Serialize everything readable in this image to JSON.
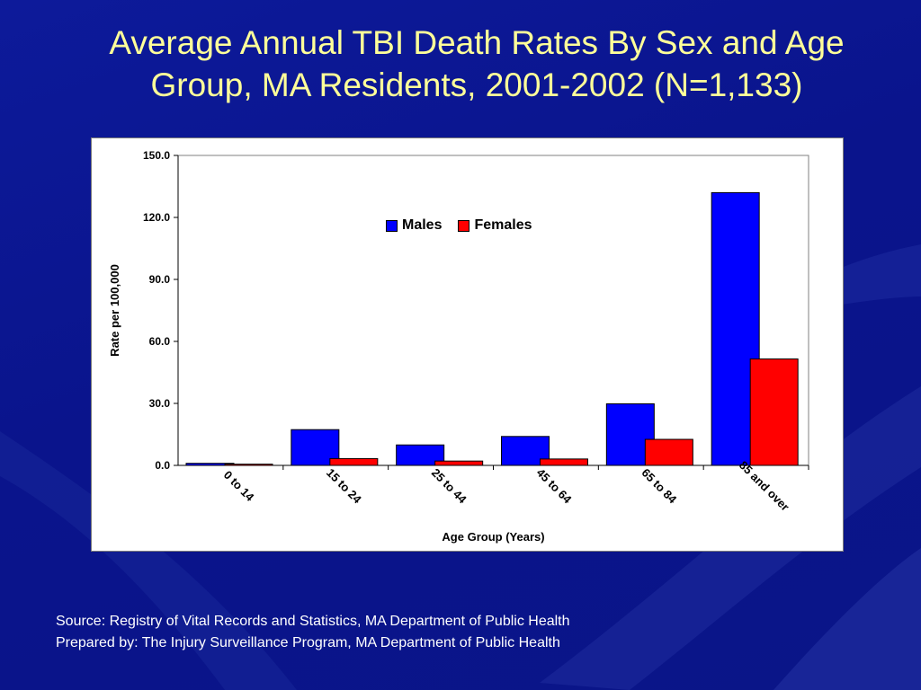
{
  "slide": {
    "title": "Average Annual TBI Death Rates By Sex and Age Group, MA Residents, 2001-2002 (N=1,133)",
    "source": "Source: Registry of Vital Records and Statistics, MA Department of Public Health",
    "prepared_by": "Prepared by: The Injury Surveillance Program, MA Department of Public Health"
  },
  "colors": {
    "background": "#0a148f",
    "title": "#ffff99",
    "males": "#0000ff",
    "females": "#ff0000"
  },
  "chart_data": {
    "type": "bar",
    "categories": [
      "0 to 14",
      "15 to 24",
      "25 to 44",
      "45 to 64",
      "65 to 84",
      "85 and over"
    ],
    "series": [
      {
        "name": "Males",
        "values": [
          1.0,
          17.3,
          9.9,
          14.0,
          29.8,
          132.0
        ]
      },
      {
        "name": "Females",
        "values": [
          0.6,
          3.3,
          2.1,
          3.1,
          12.6,
          51.5
        ]
      }
    ],
    "xlabel": "Age Group (Years)",
    "ylabel": "Rate per 100,000",
    "ylim": [
      0,
      150
    ],
    "yticks": [
      "0.0",
      "30.0",
      "60.0",
      "90.0",
      "120.0",
      "150.0"
    ],
    "legend_position": "top-center",
    "grid": false
  }
}
